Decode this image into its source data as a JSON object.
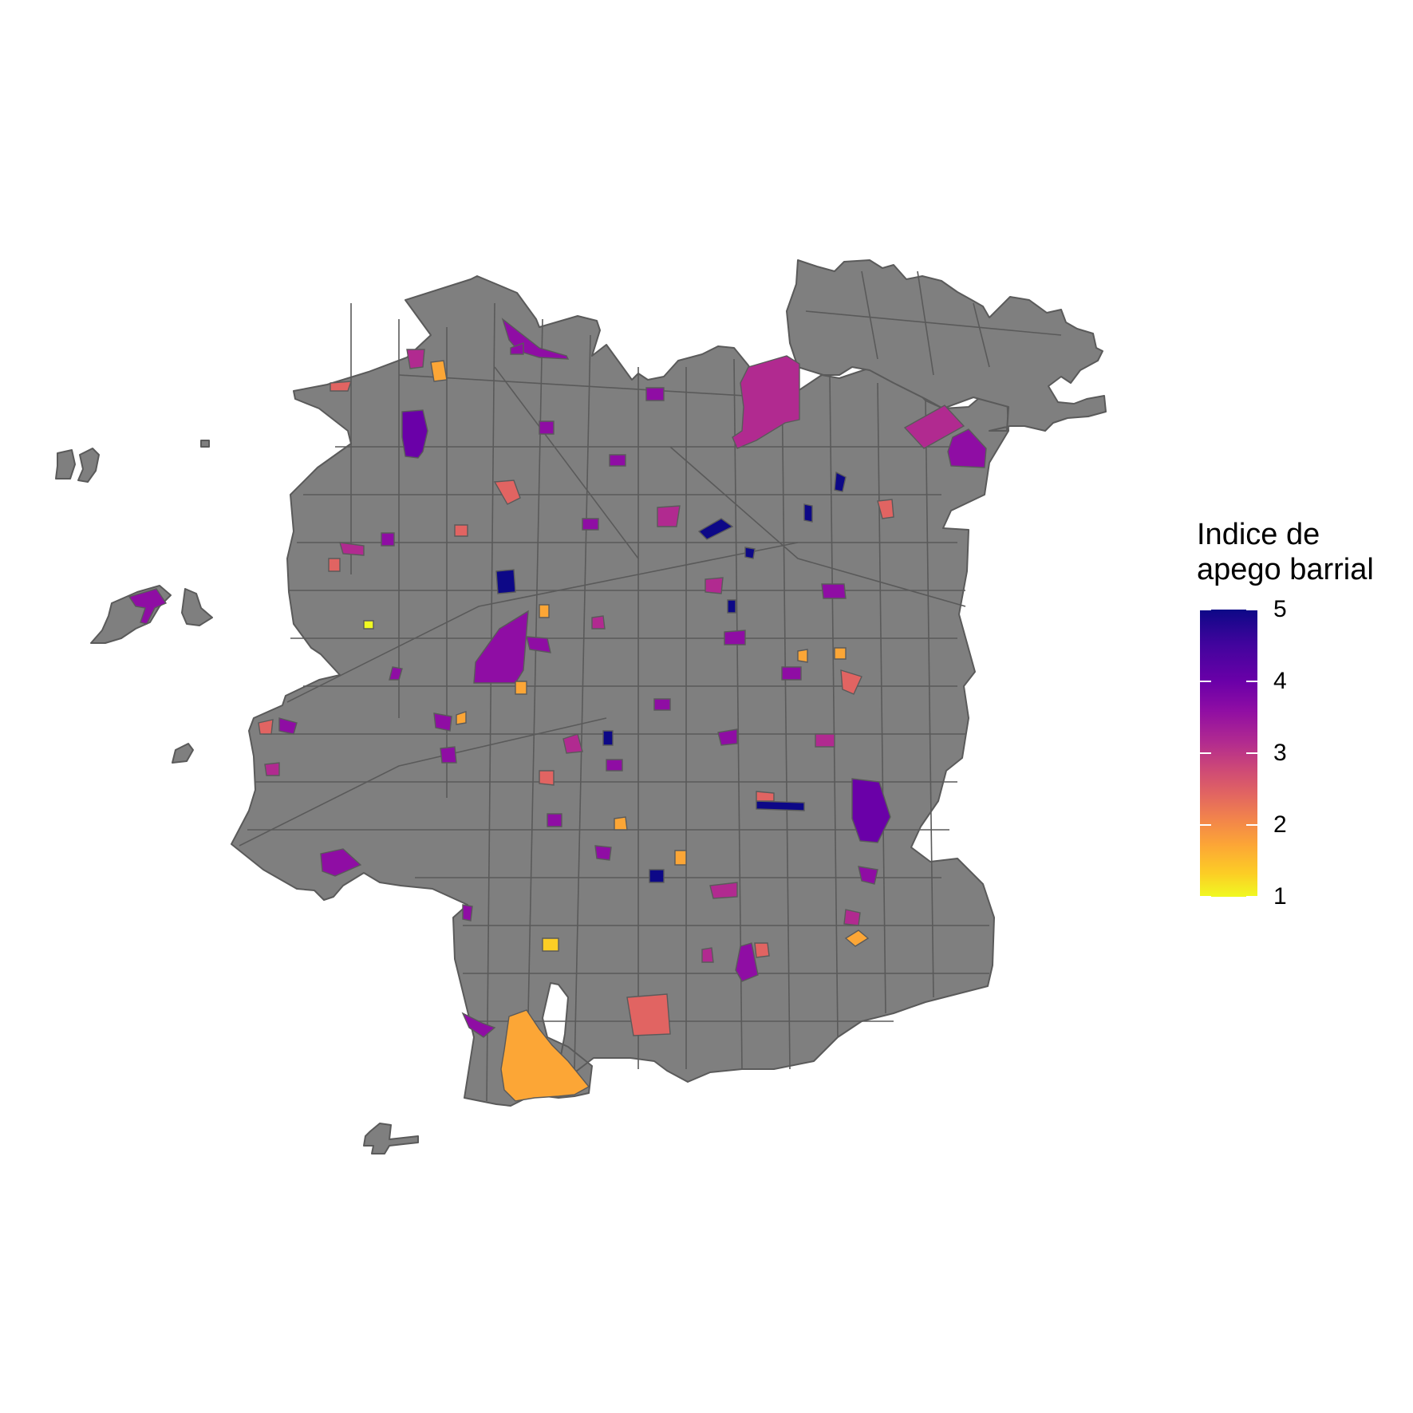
{
  "map": {
    "type": "choropleth",
    "missing_color": "#7f7f7f",
    "border_color": "#5a5a5a"
  },
  "legend": {
    "title_line1": "Indice de",
    "title_line2": "apego barrial",
    "min": 1,
    "max": 5,
    "ticks": [
      {
        "value": 5,
        "label": "5"
      },
      {
        "value": 4,
        "label": "4"
      },
      {
        "value": 3,
        "label": "3"
      },
      {
        "value": 2,
        "label": "2"
      },
      {
        "value": 1,
        "label": "1"
      }
    ],
    "palette": "plasma",
    "palette_colors": [
      "#0d0887",
      "#6a00a8",
      "#b12a90",
      "#e16462",
      "#fca636",
      "#f0f921"
    ]
  }
}
